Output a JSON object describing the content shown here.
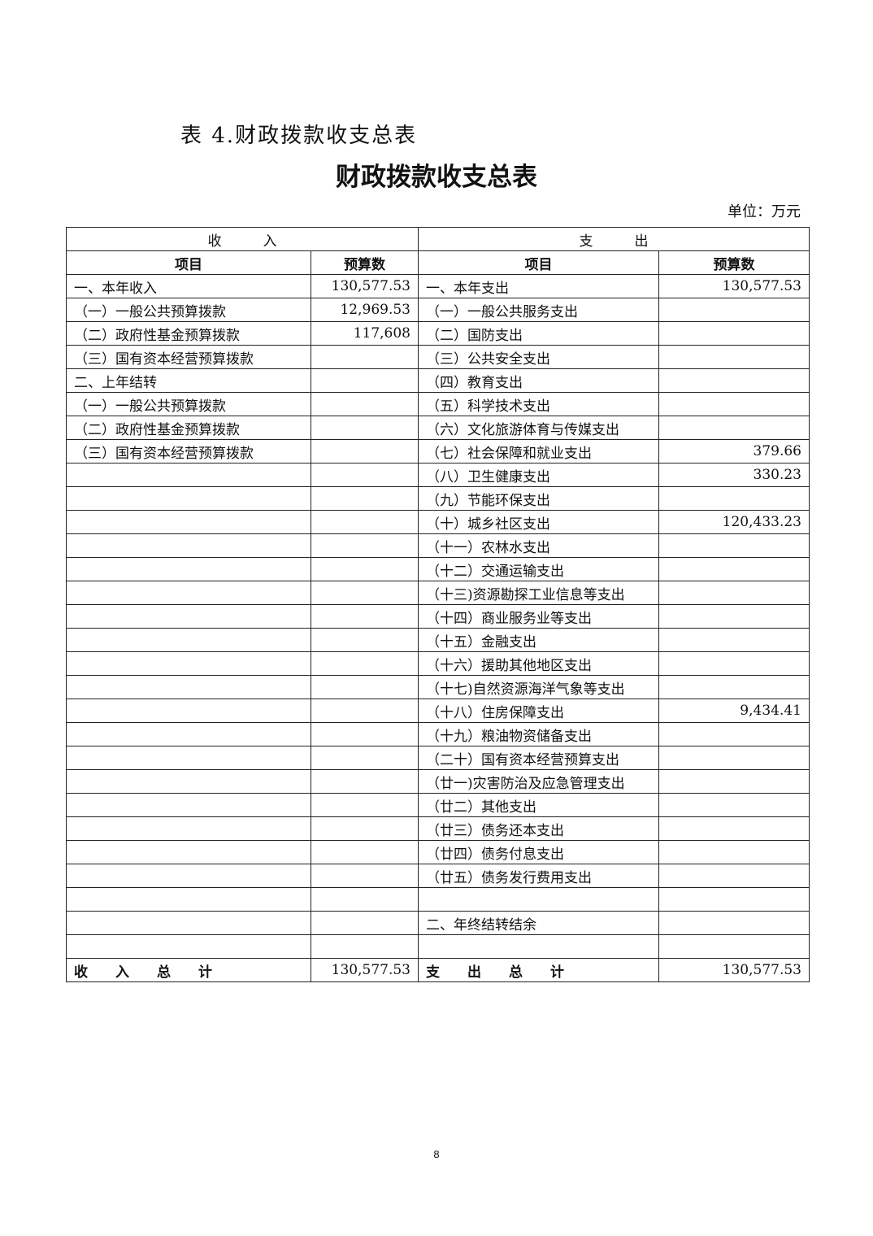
{
  "caption": "表 4.财政拨款收支总表",
  "title": "财政拨款收支总表",
  "unit": "单位：万元",
  "sections": {
    "income": "收　　　入",
    "expense": "支　　　出"
  },
  "columns": {
    "item": "项目",
    "budget": "预算数"
  },
  "rows": [
    [
      "一、本年收入",
      "130,577.53",
      "一、本年支出",
      "130,577.53"
    ],
    [
      "（一）一般公共预算拨款",
      "12,969.53",
      "（一）一般公共服务支出",
      ""
    ],
    [
      "（二）政府性基金预算拨款",
      "117,608",
      "（二）国防支出",
      ""
    ],
    [
      "（三）国有资本经营预算拨款",
      "",
      "（三）公共安全支出",
      ""
    ],
    [
      "二、上年结转",
      "",
      "（四）教育支出",
      ""
    ],
    [
      "（一）一般公共预算拨款",
      "",
      "（五）科学技术支出",
      ""
    ],
    [
      "（二）政府性基金预算拨款",
      "",
      "（六）文化旅游体育与传媒支出",
      ""
    ],
    [
      "（三）国有资本经营预算拨款",
      "",
      "（七）社会保障和就业支出",
      "379.66"
    ],
    [
      "",
      "",
      "（八）卫生健康支出",
      "330.23"
    ],
    [
      "",
      "",
      "（九）节能环保支出",
      ""
    ],
    [
      "",
      "",
      "（十）城乡社区支出",
      "120,433.23"
    ],
    [
      "",
      "",
      "（十一）农林水支出",
      ""
    ],
    [
      "",
      "",
      "（十二）交通运输支出",
      ""
    ],
    [
      "",
      "",
      "（十三)资源勘探工业信息等支出",
      ""
    ],
    [
      "",
      "",
      "（十四）商业服务业等支出",
      ""
    ],
    [
      "",
      "",
      "（十五）金融支出",
      ""
    ],
    [
      "",
      "",
      "（十六）援助其他地区支出",
      ""
    ],
    [
      "",
      "",
      "（十七)自然资源海洋气象等支出",
      ""
    ],
    [
      "",
      "",
      "（十八）住房保障支出",
      "9,434.41"
    ],
    [
      "",
      "",
      "（十九）粮油物资储备支出",
      ""
    ],
    [
      "",
      "",
      "（二十）国有资本经营预算支出",
      ""
    ],
    [
      "",
      "",
      "（廿一)灾害防治及应急管理支出",
      ""
    ],
    [
      "",
      "",
      "（廿二）其他支出",
      ""
    ],
    [
      "",
      "",
      "（廿三）债务还本支出",
      ""
    ],
    [
      "",
      "",
      "（廿四）债务付息支出",
      ""
    ],
    [
      "",
      "",
      "（廿五）债务发行费用支出",
      ""
    ],
    [
      "",
      "",
      "",
      ""
    ],
    [
      "",
      "",
      "二、年终结转结余",
      ""
    ],
    [
      "",
      "",
      "",
      ""
    ]
  ],
  "totals": {
    "income_label": "收　　入　　总　　计",
    "income_value": "130,577.53",
    "expense_label": "支　　出　　总　　计",
    "expense_value": "130,577.53"
  },
  "page_number": "8"
}
